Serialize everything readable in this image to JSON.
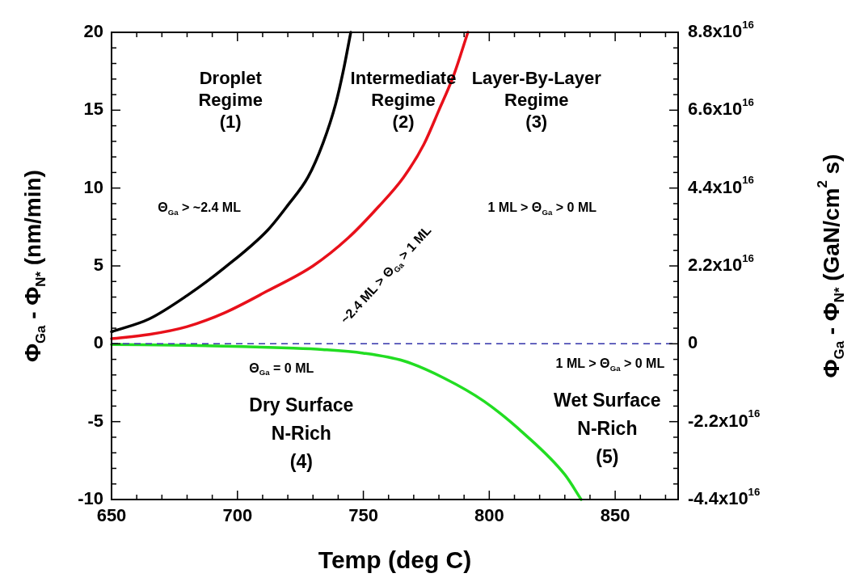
{
  "chart_data": {
    "type": "line",
    "xlabel": "Temp (deg C)",
    "ylabel": "Φ$_{Ga}$ - Φ$_{N*}$ (nm/min)",
    "y2label": "Φ$_{Ga}$ - Φ$_{N*}$ (GaN/cm$^{2}$ s)",
    "series": [
      {
        "color": "#000000",
        "x": [
          650,
          665,
          680,
          695,
          712,
          720,
          728,
          734,
          739,
          742,
          745
        ],
        "values": [
          0.77,
          1.6,
          3.1,
          4.9,
          7.3,
          8.9,
          10.7,
          12.9,
          15.4,
          17.5,
          20
        ]
      },
      {
        "color": "#e8101a",
        "x": [
          650,
          665,
          680,
          695,
          712,
          730,
          744,
          756,
          766,
          774,
          780,
          786,
          791.5
        ],
        "values": [
          0.33,
          0.6,
          1.1,
          2.0,
          3.4,
          5.0,
          6.8,
          8.8,
          10.7,
          12.8,
          15,
          17.3,
          20
        ]
      },
      {
        "color": "#22dd22",
        "x": [
          650,
          680,
          701.8,
          720,
          733.8,
          750,
          766,
          782,
          798,
          814,
          830,
          836.5
        ],
        "values": [
          -0.05,
          -0.1,
          -0.18,
          -0.27,
          -0.37,
          -0.6,
          -1.1,
          -2.2,
          -3.7,
          -5.8,
          -8.4,
          -10
        ]
      }
    ],
    "xlim": [
      650,
      875
    ],
    "xticks": [
      650,
      {
        "value": 660,
        "label": null
      },
      {
        "value": 670,
        "label": null
      },
      {
        "value": 680,
        "label": null
      },
      {
        "value": 690,
        "label": null
      },
      700,
      {
        "value": 710,
        "label": null
      },
      {
        "value": 720,
        "label": null
      },
      {
        "value": 730,
        "label": null
      },
      {
        "value": 740,
        "label": null
      },
      750,
      {
        "value": 760,
        "label": null
      },
      {
        "value": 770,
        "label": null
      },
      {
        "value": 780,
        "label": null
      },
      {
        "value": 790,
        "label": null
      },
      800,
      {
        "value": 810,
        "label": null
      },
      {
        "value": 820,
        "label": null
      },
      {
        "value": 830,
        "label": null
      },
      {
        "value": 840,
        "label": null
      },
      850,
      {
        "value": 860,
        "label": null
      },
      {
        "value": 870,
        "label": null
      }
    ],
    "ylim": [
      -10,
      20
    ],
    "yticks": [
      -10,
      {
        "value": -9,
        "label": null
      },
      {
        "value": -8,
        "label": null
      },
      {
        "value": -7,
        "label": null
      },
      {
        "value": -6,
        "label": null
      },
      -5,
      {
        "value": -4,
        "label": null
      },
      {
        "value": -3,
        "label": null
      },
      {
        "value": -2,
        "label": null
      },
      {
        "value": -1,
        "label": null
      },
      0,
      {
        "value": 1,
        "label": null
      },
      {
        "value": 2,
        "label": null
      },
      {
        "value": 3,
        "label": null
      },
      {
        "value": 4,
        "label": null
      },
      5,
      {
        "value": 6,
        "label": null
      },
      {
        "value": 7,
        "label": null
      },
      {
        "value": 8,
        "label": null
      },
      {
        "value": 9,
        "label": null
      },
      10,
      {
        "value": 11,
        "label": null
      },
      {
        "value": 12,
        "label": null
      },
      {
        "value": 13,
        "label": null
      },
      {
        "value": 14,
        "label": null
      },
      15,
      {
        "value": 16,
        "label": null
      },
      {
        "value": 17,
        "label": null
      },
      {
        "value": 18,
        "label": null
      },
      {
        "value": 19,
        "label": null
      },
      20
    ],
    "y2lim": [
      -4.4e+16,
      8.8e+16
    ],
    "y2ticks": [
      {
        "value": -4.4e+16,
        "label": "-4.4x10$^{16}$"
      },
      {
        "value": -2.2e+16,
        "label": "-2.2x10$^{16}$"
      },
      0,
      {
        "value": 2.2e+16,
        "label": "2.2x10$^{16}$"
      },
      {
        "value": 4.4e+16,
        "label": "4.4x10$^{16}$"
      },
      {
        "value": 6.6e+16,
        "label": "6.6x10$^{16}$"
      },
      {
        "value": 8.8e+16,
        "label": "8.8x10$^{16}$"
      }
    ],
    "ref_lines": [
      {
        "axis": "y",
        "value": 0,
        "color": "#3333aa",
        "line_style": "dashed"
      }
    ],
    "annotations": [
      "Droplet\nRegime\n(1)",
      "Intermediate\nRegime\n(2)",
      "Layer-By-Layer\nRegime\n(3)",
      "Θ$_{Ga}$ > ~2.4 ML",
      "~2.4 ML > Θ$_{Ga}$ > 1 ML",
      "1 ML > Θ$_{Ga}$ > 0 ML",
      "Θ$_{Ga}$ = 0 ML",
      "1 ML > Θ$_{Ga}$ > 0 ML",
      "Dry Surface\nN-Rich\n(4)",
      "Wet Surface\nN-Rich\n(5)"
    ],
    "grid": false,
    "legend": false,
    "marker": "none",
    "line_style": "solid"
  }
}
